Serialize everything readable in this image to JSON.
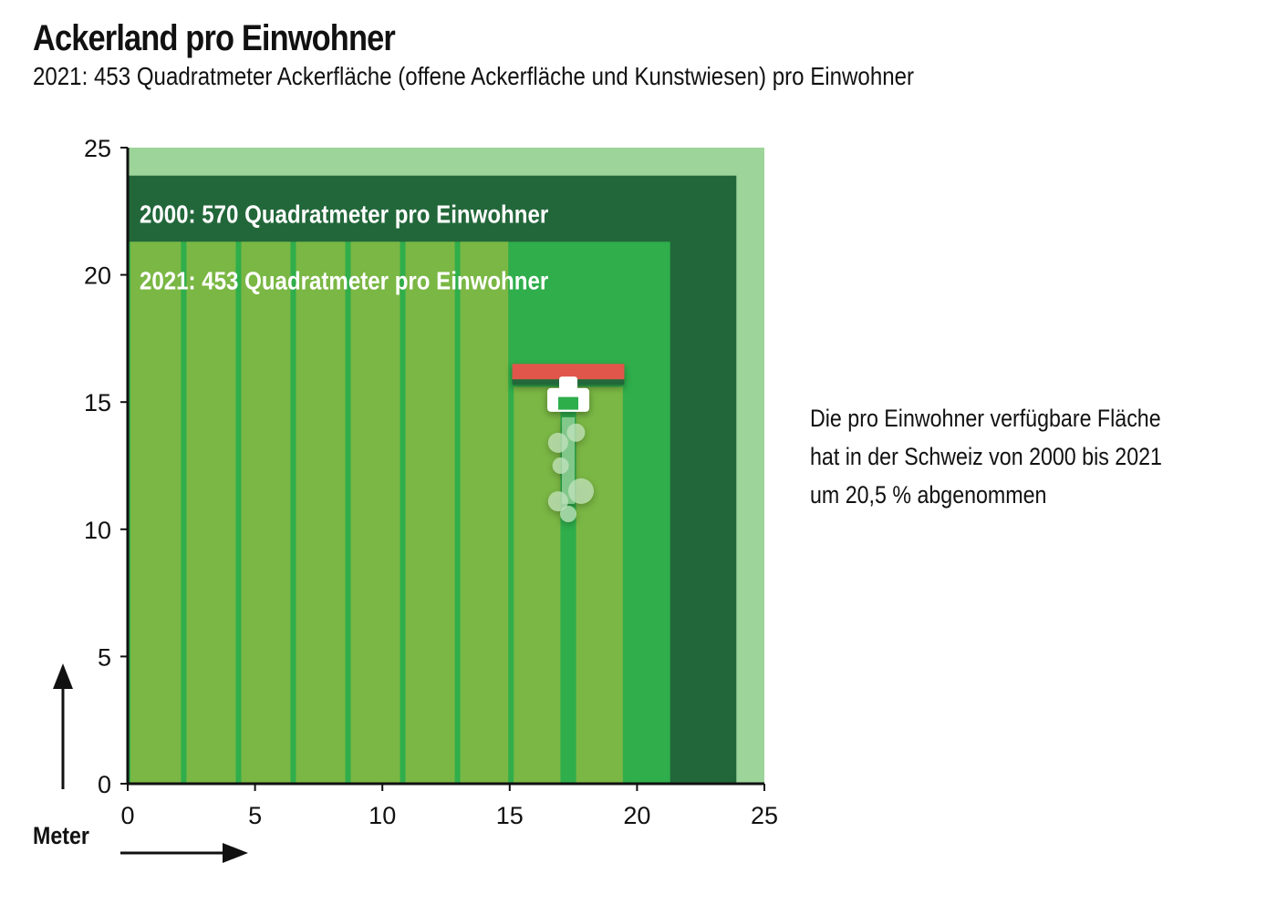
{
  "title": "Ackerland pro Einwohner",
  "subtitle": "2021: 453 Quadratmeter Ackerfläche (offene Ackerfläche und Kunstwiesen) pro Einwohner",
  "note": {
    "lines": [
      "Die pro Einwohner verfügbare Fläche",
      "hat in der Schweiz von 2000 bis 2021",
      "um 20,5 % abgenommen"
    ]
  },
  "chart_data": {
    "type": "area",
    "title": "Ackerland pro Einwohner",
    "xlabel": "Meter",
    "ylabel": "",
    "xlim": [
      0,
      25
    ],
    "ylim": [
      0,
      25
    ],
    "x_ticks": [
      "0",
      "5",
      "10",
      "15",
      "20",
      "25"
    ],
    "y_ticks": [
      "0",
      "5",
      "10",
      "15",
      "20",
      "25"
    ],
    "grid": false,
    "squares": [
      {
        "year": 2000,
        "area_m2": 570,
        "side_m": 23.9,
        "label": "2000: 570 Quadratmeter pro Einwohner"
      },
      {
        "year": 2021,
        "area_m2": 453,
        "side_m": 21.3,
        "label": "2021: 453 Quadratmeter pro Einwohner"
      }
    ],
    "colors": {
      "background": "#9dd49a",
      "square_2000": "#22673a",
      "square_2021_bright": "#2fae4b",
      "field_stripes": "#7ab744",
      "stripe_lines": "#2fae4b",
      "tractor_accent": "#e0574b"
    }
  }
}
